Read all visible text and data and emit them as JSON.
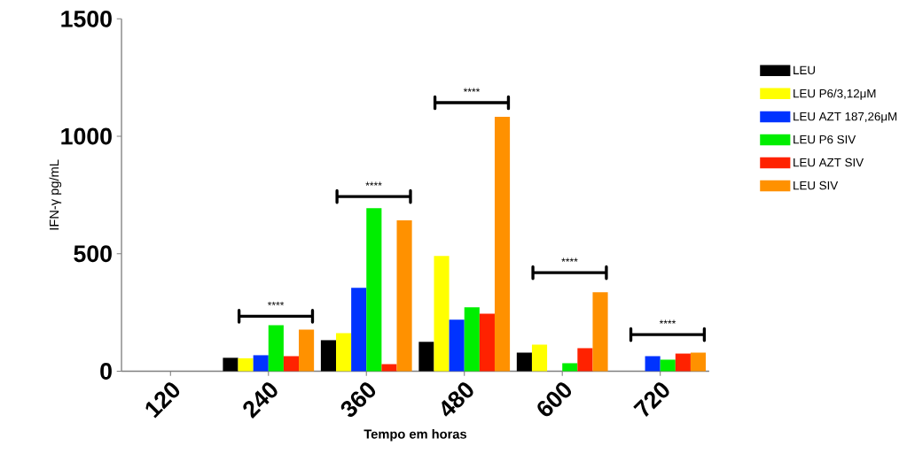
{
  "chart_data": {
    "type": "bar",
    "xlabel": "Tempo em horas",
    "ylabel": "IFN-γ pg/mL",
    "categories": [
      "120",
      "240",
      "360",
      "480",
      "600",
      "720"
    ],
    "series": [
      {
        "name": "LEU",
        "color": "#000000",
        "values": [
          null,
          57,
          132,
          125,
          79,
          null
        ]
      },
      {
        "name": "LEU P6/3,12μM",
        "color": "#ffff00",
        "values": [
          null,
          55,
          162,
          491,
          113,
          null
        ]
      },
      {
        "name": "LEU AZT 187,26μM",
        "color": "#0033ff",
        "values": [
          null,
          68,
          355,
          219,
          null,
          64
        ]
      },
      {
        "name": "LEU P6 SIV",
        "color": "#00ee00",
        "values": [
          null,
          196,
          694,
          272,
          34,
          49
        ]
      },
      {
        "name": "LEU AZT SIV",
        "color": "#ff2200",
        "values": [
          null,
          64,
          30,
          245,
          98,
          75
        ]
      },
      {
        "name": "LEU SIV",
        "color": "#ff9100",
        "values": [
          null,
          177,
          642,
          1083,
          336,
          79
        ]
      }
    ],
    "ylim": [
      0,
      1500
    ],
    "yticks": [
      0,
      500,
      1000,
      1500
    ],
    "grid": false,
    "legend": "top right",
    "annotations": [
      "****",
      "****",
      "****",
      "****",
      "****"
    ]
  }
}
